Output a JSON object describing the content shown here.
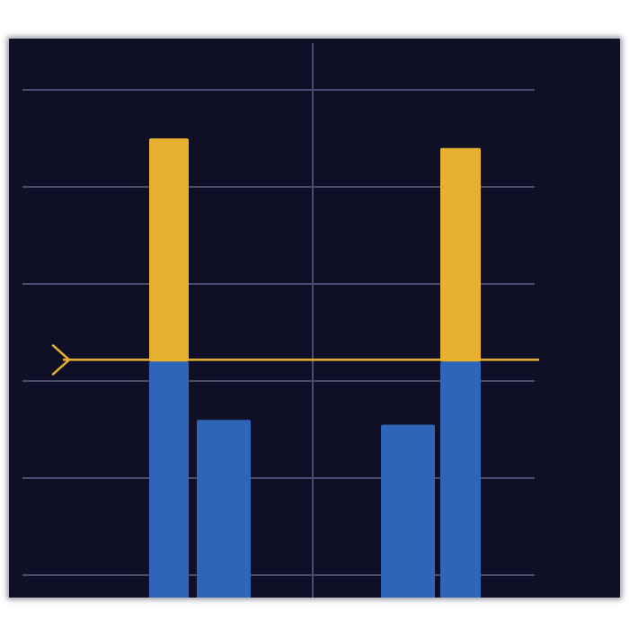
{
  "colors": {
    "background": "#0f0f26",
    "grid": "#4a4a6e",
    "series_gold": "#e8b030",
    "series_blue": "#2e65b8",
    "reference_line": "#e8b030"
  },
  "chart_data": {
    "type": "bar",
    "stacked": true,
    "title": "",
    "xlabel": "",
    "ylabel": "",
    "grid": true,
    "legend": "none",
    "ylim": [
      0,
      5
    ],
    "categories": [
      "",
      "",
      "",
      ""
    ],
    "series": [
      {
        "color": "#2e65b8",
        "values": [
          2.2,
          1.6,
          1.55,
          2.2
        ]
      },
      {
        "color": "#e8b030",
        "values": [
          2.3,
          0,
          0,
          2.2
        ]
      }
    ],
    "reference_line": {
      "y": 2.2,
      "marker": "chevron-right-arrow"
    }
  }
}
